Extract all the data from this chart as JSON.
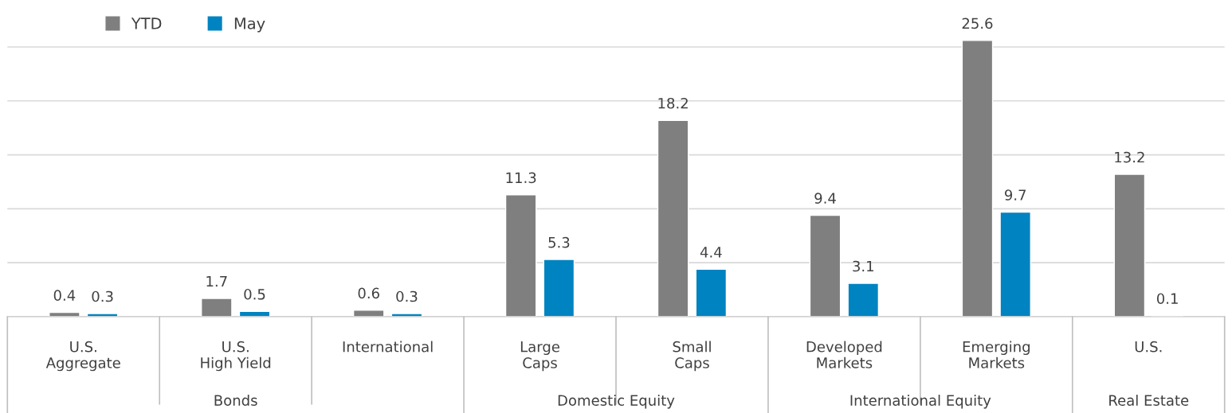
{
  "chart_data": {
    "type": "bar",
    "categories": [
      "U.S.\nAggregate",
      "U.S.\nHigh Yield",
      "International",
      "Large\nCaps",
      "Small\nCaps",
      "Developed\nMarkets",
      "Emerging\nMarkets",
      "U.S."
    ],
    "series": [
      {
        "name": "YTD",
        "color": "#7f7f7f",
        "values": [
          0.4,
          1.7,
          0.6,
          11.3,
          18.2,
          9.4,
          25.6,
          13.2
        ]
      },
      {
        "name": "May",
        "color": "#0083c1",
        "values": [
          0.3,
          0.5,
          0.3,
          5.3,
          4.4,
          3.1,
          9.7,
          0.1
        ]
      }
    ],
    "annotations": [
      "Bonds",
      "Domestic Equity",
      "International Equity",
      "Real Estate"
    ],
    "yticks": [
      {
        "value": 0,
        "label": null
      },
      {
        "value": 5,
        "label": null
      },
      {
        "value": 10,
        "label": null
      },
      {
        "value": 15,
        "label": null
      },
      {
        "value": 20,
        "label": null
      },
      {
        "value": 25,
        "label": null
      }
    ],
    "tick_labels": "x",
    "grid": "y",
    "legend": "top left",
    "data_labels": true
  }
}
